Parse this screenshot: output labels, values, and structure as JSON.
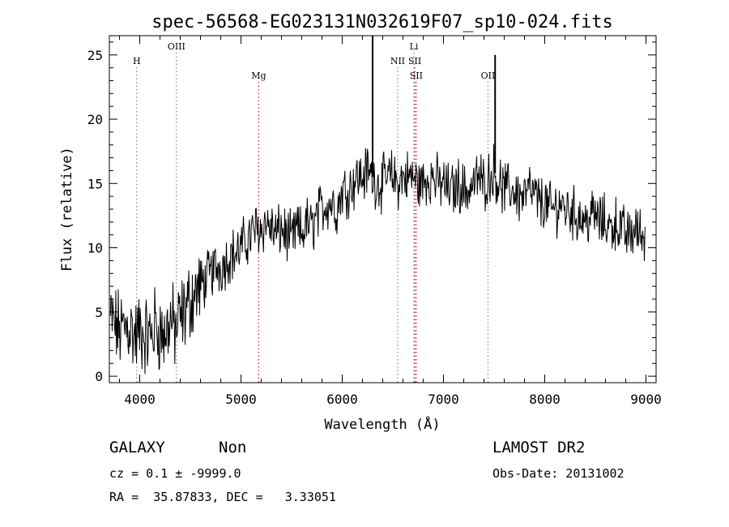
{
  "chart_data": {
    "type": "line",
    "title": "spec-56568-EG023131N032619F07_sp10-024.fits",
    "xlabel": "Wavelength (Å)",
    "ylabel": "Flux (relative)",
    "xlim": [
      3700,
      9100
    ],
    "ylim": [
      -0.5,
      26.5
    ],
    "xticks": [
      4000,
      5000,
      6000,
      7000,
      8000,
      9000
    ],
    "yticks": [
      0,
      5,
      10,
      15,
      20,
      25
    ],
    "grid": false,
    "series": [
      {
        "x": [
          3700,
          3750,
          3800,
          3850,
          3900,
          3950,
          4000,
          4050,
          4100,
          4150,
          4200,
          4250,
          4300,
          4350,
          4400,
          4450,
          4500,
          4550,
          4600,
          4650,
          4700,
          4750,
          4800,
          4850,
          4900,
          4950,
          5000,
          5050,
          5100,
          5150,
          5200,
          5250,
          5300,
          5350,
          5400,
          5450,
          5500,
          5550,
          5600,
          5650,
          5700,
          5750,
          5800,
          5850,
          5900,
          5950,
          6000,
          6050,
          6100,
          6150,
          6200,
          6250,
          6300,
          6350,
          6400,
          6450,
          6500,
          6550,
          6600,
          6650,
          6700,
          6750,
          6800,
          6850,
          6900,
          6950,
          7000,
          7050,
          7100,
          7150,
          7200,
          7250,
          7300,
          7350,
          7400,
          7450,
          7500,
          7550,
          7600,
          7650,
          7700,
          7750,
          7800,
          7850,
          7900,
          7950,
          8000,
          8050,
          8100,
          8150,
          8200,
          8250,
          8300,
          8350,
          8400,
          8450,
          8500,
          8550,
          8600,
          8650,
          8700,
          8750,
          8800,
          8850,
          8900,
          8950,
          9000
        ],
        "y": [
          4.5,
          4.0,
          3.5,
          3.8,
          4.0,
          3.0,
          3.5,
          3.2,
          3.0,
          4.0,
          3.5,
          3.0,
          4.5,
          3.5,
          4.5,
          5.0,
          6.0,
          6.5,
          7.0,
          7.5,
          8.0,
          8.5,
          8.5,
          9.0,
          9.5,
          9.5,
          10.0,
          10.5,
          11.0,
          11.5,
          11.5,
          12.0,
          11.5,
          11.0,
          11.5,
          11.0,
          10.5,
          11.5,
          11.0,
          12.0,
          11.5,
          12.5,
          13.0,
          13.5,
          13.5,
          13.0,
          14.5,
          14.5,
          15.0,
          15.5,
          15.5,
          16.0,
          15.5,
          15.0,
          15.0,
          15.5,
          15.5,
          15.0,
          15.5,
          15.5,
          15.5,
          15.0,
          15.0,
          15.5,
          15.5,
          15.0,
          15.0,
          14.5,
          14.5,
          15.0,
          14.5,
          14.5,
          15.0,
          15.5,
          15.0,
          15.5,
          16.0,
          15.0,
          14.5,
          14.5,
          14.5,
          14.0,
          14.0,
          14.5,
          14.0,
          13.5,
          13.5,
          13.0,
          13.0,
          13.5,
          13.0,
          13.0,
          12.5,
          12.5,
          12.0,
          12.5,
          12.5,
          12.0,
          12.0,
          11.5,
          12.0,
          11.5,
          11.0,
          11.0,
          11.5,
          11.0,
          11.0
        ]
      }
    ],
    "spikes": [
      {
        "x": 6300,
        "y": 26.5
      },
      {
        "x": 7510,
        "y": 25.0
      }
    ],
    "emission_lines": [
      {
        "label": "OIII",
        "x": 4363,
        "color": "#888888",
        "row": 0
      },
      {
        "label": "Li",
        "x": 6708,
        "color": "#888888",
        "row": 0
      },
      {
        "label": "H",
        "x": 3970,
        "color": "#888888",
        "row": 1
      },
      {
        "label": "NII",
        "x": 6548,
        "color": "#888888",
        "row": 1
      },
      {
        "label": "SII",
        "x": 6717,
        "color": "#cc2222",
        "row": 1
      },
      {
        "label": "Mg",
        "x": 5175,
        "color": "#cc2222",
        "row": 2
      },
      {
        "label": "SII",
        "x": 6731,
        "color": "#cc2222",
        "row": 2
      },
      {
        "label": "OII",
        "x": 7440,
        "color": "#888888",
        "row": 2
      }
    ]
  },
  "info": {
    "class_label": "GALAXY",
    "subclass_label": "Non",
    "survey_label": "LAMOST DR2",
    "cz_text": "cz = 0.1 ± -9999.0",
    "obs_date_text": "Obs-Date: 20131002",
    "radec_text": "RA =  35.87833, DEC =   3.33051"
  }
}
